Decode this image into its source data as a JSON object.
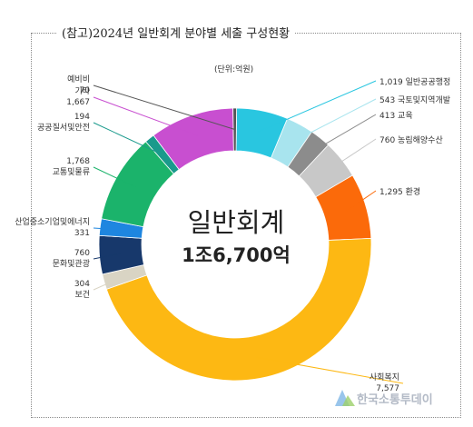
{
  "title": "(참고)2024년 일반회계 분야별 세출 구성현황",
  "unit_label": "(단위:억원)",
  "watermark": "한국소통투데이",
  "chart_data": {
    "type": "donut",
    "center_title": "일반회계",
    "center_value": "1조6,700억",
    "slices": [
      {
        "name": "일반공공행정",
        "value": 1019,
        "value_label": "1,019",
        "color": "#29c6e0"
      },
      {
        "name": "국토및지역개발",
        "value": 543,
        "value_label": "543",
        "color": "#a8e4ee"
      },
      {
        "name": "교육",
        "value": 413,
        "value_label": "413",
        "color": "#8c8c8c"
      },
      {
        "name": "농림해양수산",
        "value": 760,
        "value_label": "760",
        "color": "#c8c8c8"
      },
      {
        "name": "환경",
        "value": 1295,
        "value_label": "1,295",
        "color": "#fb6a0a"
      },
      {
        "name": "사회복지",
        "value": 7577,
        "value_label": "7,577",
        "color": "#fdb813"
      },
      {
        "name": "보건",
        "value": 304,
        "value_label": "304",
        "color": "#d9d4c4"
      },
      {
        "name": "문화및관광",
        "value": 760,
        "value_label": "760",
        "color": "#17386b"
      },
      {
        "name": "산업중소기업및에너지",
        "value": 331,
        "value_label": "331",
        "color": "#1e86e0"
      },
      {
        "name": "교통및물류",
        "value": 1768,
        "value_label": "1,768",
        "color": "#1bb36b"
      },
      {
        "name": "공공질서및안전",
        "value": 194,
        "value_label": "194",
        "color": "#1a9a8c"
      },
      {
        "name": "기타",
        "value": 1667,
        "value_label": "1,667",
        "color": "#c84fd0"
      },
      {
        "name": "예비비",
        "value": 70,
        "value_label": "70",
        "color": "#555555"
      }
    ]
  }
}
